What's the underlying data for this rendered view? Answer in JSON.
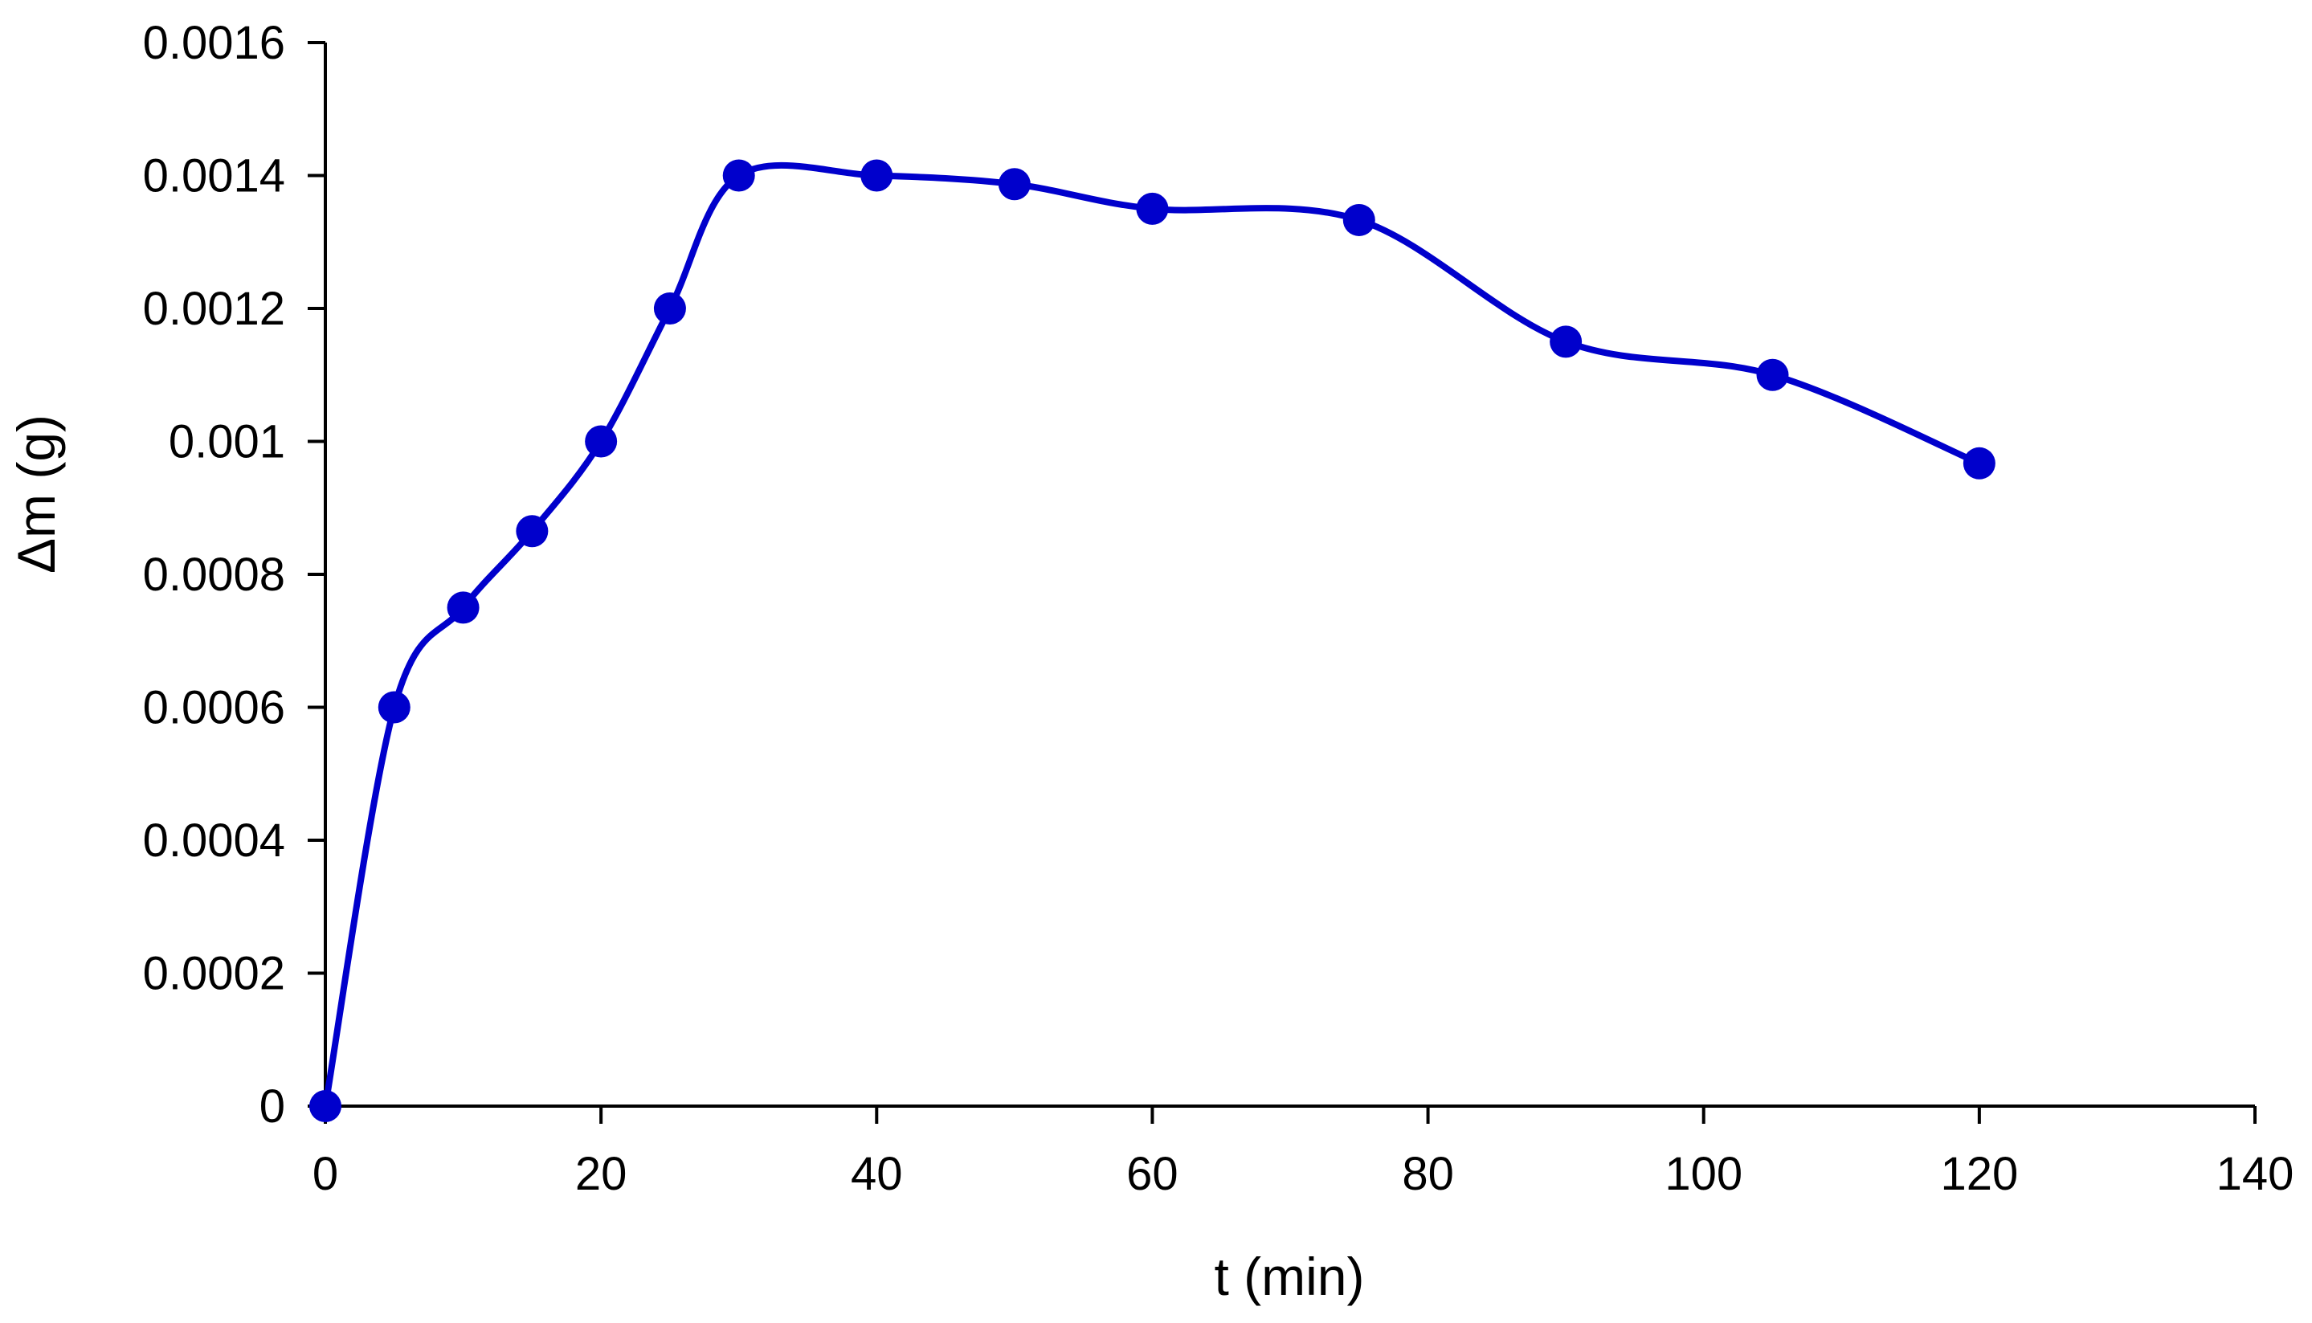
{
  "chart_data": {
    "type": "line",
    "title": "",
    "xlabel": "t (min)",
    "ylabel": "Δm (g)",
    "xlim": [
      0,
      140
    ],
    "ylim": [
      0,
      0.0016
    ],
    "x_ticks": [
      0,
      20,
      40,
      60,
      80,
      100,
      120,
      140
    ],
    "x_tick_labels": [
      "0",
      "20",
      "40",
      "60",
      "80",
      "100",
      "120",
      "140"
    ],
    "y_ticks": [
      0,
      0.0002,
      0.0004,
      0.0006,
      0.0008,
      0.001,
      0.0012,
      0.0014,
      0.0016
    ],
    "y_tick_labels": [
      "0",
      "0.0002",
      "0.0004",
      "0.0006",
      "0.0008",
      "0.001",
      "0.0012",
      "0.0014",
      "0.0016"
    ],
    "grid": false,
    "smooth": true,
    "series": [
      {
        "name": "Δm",
        "color": "#0000CC",
        "x": [
          0,
          5,
          10,
          15,
          20,
          25,
          30,
          40,
          50,
          60,
          75,
          90,
          105,
          120
        ],
        "y": [
          0,
          0.0006,
          0.00075,
          0.000865,
          0.001,
          0.0012,
          0.0014,
          0.0014,
          0.001387,
          0.00135,
          0.001333,
          0.00115,
          0.0011,
          0.000967
        ]
      }
    ]
  }
}
